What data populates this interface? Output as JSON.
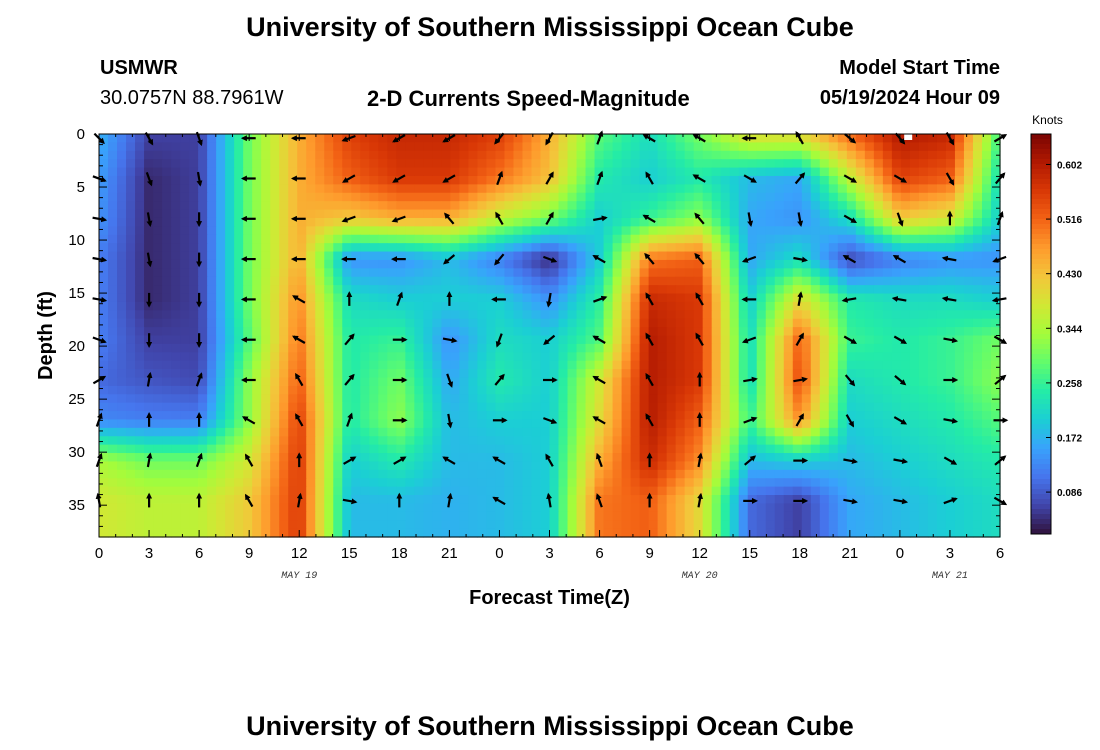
{
  "page": {
    "title": "University of Southern Mississippi Ocean Cube",
    "footer_title": "University of Southern Mississippi Ocean Cube"
  },
  "header": {
    "station_name": "USMWR",
    "station_coords": "30.0757N  88.7961W",
    "chart_subtitle": "2-D Currents Speed-Magnitude",
    "model_start_label": "Model Start Time",
    "model_start_value": "05/19/2024 Hour 09"
  },
  "colors": {
    "scale": [
      "#30123b",
      "#4145ab",
      "#4675ed",
      "#39a2fc",
      "#1bcfd4",
      "#24eca6",
      "#61fc6c",
      "#a4fc3b",
      "#d1e834",
      "#f3c63a",
      "#fe9b2d",
      "#f36315",
      "#d93806",
      "#b11901",
      "#7a0403"
    ],
    "arrow": "#000000",
    "marker": "#ffffff"
  },
  "chart_data": {
    "type": "heatmap",
    "title": "2-D Currents Speed-Magnitude",
    "xlabel": "Forecast Time(Z)",
    "ylabel": "Depth (ft)",
    "colorbar_label": "Knots",
    "colorbar_ticks": [
      "0.086",
      "0.172",
      "0.258",
      "0.344",
      "0.430",
      "0.516",
      "0.602"
    ],
    "colorbar_range": [
      0.02,
      0.65
    ],
    "x_hours_range": [
      0,
      54
    ],
    "x_tick_labels": [
      "0",
      "3",
      "6",
      "9",
      "12",
      "15",
      "18",
      "21",
      "0",
      "3",
      "6",
      "9",
      "12",
      "15",
      "18",
      "21",
      "0",
      "3",
      "6"
    ],
    "date_labels": [
      {
        "text": "MAY 19",
        "hour": 12
      },
      {
        "text": "MAY 20",
        "hour": 36
      },
      {
        "text": "MAY 21",
        "hour": 51
      }
    ],
    "y_range": [
      0,
      38
    ],
    "y_tick_labels": [
      "0",
      "5",
      "10",
      "15",
      "20",
      "25",
      "30",
      "35"
    ],
    "depths_ft": [
      0.4,
      4.2,
      8.0,
      11.8,
      15.6,
      19.4,
      23.2,
      27.0,
      30.8,
      34.6
    ],
    "hours": [
      0,
      3,
      6,
      9,
      12,
      15,
      18,
      21,
      24,
      27,
      30,
      33,
      36,
      39,
      42,
      45,
      48,
      51,
      54
    ],
    "speed_knots": [
      [
        0.17,
        0.06,
        0.06,
        0.3,
        0.45,
        0.55,
        0.58,
        0.58,
        0.55,
        0.45,
        0.28,
        0.22,
        0.3,
        0.38,
        0.38,
        0.5,
        0.6,
        0.58,
        0.26
      ],
      [
        0.15,
        0.04,
        0.06,
        0.3,
        0.45,
        0.52,
        0.56,
        0.56,
        0.5,
        0.43,
        0.24,
        0.2,
        0.24,
        0.18,
        0.16,
        0.36,
        0.55,
        0.52,
        0.22
      ],
      [
        0.14,
        0.04,
        0.06,
        0.3,
        0.45,
        0.42,
        0.45,
        0.45,
        0.36,
        0.3,
        0.2,
        0.26,
        0.32,
        0.16,
        0.14,
        0.22,
        0.42,
        0.38,
        0.2
      ],
      [
        0.12,
        0.04,
        0.06,
        0.3,
        0.45,
        0.14,
        0.14,
        0.18,
        0.12,
        0.04,
        0.2,
        0.5,
        0.52,
        0.16,
        0.22,
        0.07,
        0.12,
        0.14,
        0.14
      ],
      [
        0.12,
        0.04,
        0.06,
        0.3,
        0.48,
        0.22,
        0.2,
        0.2,
        0.2,
        0.14,
        0.25,
        0.58,
        0.56,
        0.2,
        0.4,
        0.24,
        0.22,
        0.22,
        0.2
      ],
      [
        0.12,
        0.06,
        0.06,
        0.28,
        0.5,
        0.24,
        0.26,
        0.14,
        0.22,
        0.2,
        0.28,
        0.6,
        0.56,
        0.22,
        0.52,
        0.26,
        0.24,
        0.26,
        0.3
      ],
      [
        0.1,
        0.08,
        0.07,
        0.32,
        0.52,
        0.24,
        0.3,
        0.16,
        0.24,
        0.2,
        0.38,
        0.6,
        0.56,
        0.22,
        0.54,
        0.22,
        0.24,
        0.26,
        0.32
      ],
      [
        0.13,
        0.12,
        0.12,
        0.32,
        0.55,
        0.24,
        0.32,
        0.18,
        0.2,
        0.2,
        0.4,
        0.6,
        0.52,
        0.26,
        0.48,
        0.2,
        0.22,
        0.24,
        0.28
      ],
      [
        0.34,
        0.3,
        0.3,
        0.38,
        0.56,
        0.2,
        0.24,
        0.18,
        0.18,
        0.2,
        0.45,
        0.58,
        0.48,
        0.18,
        0.2,
        0.18,
        0.2,
        0.22,
        0.24
      ],
      [
        0.38,
        0.36,
        0.36,
        0.42,
        0.56,
        0.18,
        0.18,
        0.17,
        0.18,
        0.2,
        0.5,
        0.52,
        0.4,
        0.1,
        0.06,
        0.16,
        0.18,
        0.2,
        0.22
      ]
    ],
    "direction_deg": [
      [
        135,
        150,
        160,
        270,
        270,
        250,
        240,
        240,
        220,
        210,
        20,
        300,
        300,
        270,
        330,
        130,
        140,
        150,
        60
      ],
      [
        110,
        160,
        170,
        270,
        270,
        240,
        240,
        240,
        20,
        30,
        20,
        330,
        300,
        120,
        40,
        120,
        120,
        150,
        40
      ],
      [
        100,
        170,
        180,
        270,
        270,
        250,
        250,
        320,
        330,
        30,
        80,
        300,
        320,
        170,
        170,
        120,
        160,
        0,
        20
      ],
      [
        100,
        170,
        180,
        270,
        270,
        270,
        270,
        230,
        220,
        110,
        300,
        320,
        320,
        250,
        100,
        300,
        300,
        280,
        250
      ],
      [
        100,
        180,
        180,
        270,
        300,
        0,
        20,
        0,
        270,
        190,
        70,
        330,
        330,
        270,
        10,
        260,
        280,
        280,
        260
      ],
      [
        110,
        180,
        180,
        270,
        300,
        40,
        90,
        100,
        200,
        230,
        300,
        330,
        330,
        250,
        30,
        120,
        120,
        100,
        120
      ],
      [
        60,
        10,
        20,
        270,
        330,
        40,
        90,
        160,
        40,
        90,
        300,
        330,
        0,
        80,
        80,
        140,
        130,
        90,
        50
      ],
      [
        20,
        0,
        0,
        300,
        330,
        20,
        90,
        170,
        90,
        110,
        300,
        330,
        0,
        70,
        30,
        150,
        120,
        100,
        90
      ],
      [
        20,
        10,
        20,
        330,
        0,
        60,
        60,
        300,
        300,
        330,
        340,
        0,
        10,
        50,
        90,
        100,
        100,
        120,
        50
      ],
      [
        350,
        0,
        0,
        330,
        10,
        100,
        0,
        10,
        300,
        350,
        340,
        0,
        10,
        90,
        90,
        100,
        100,
        70,
        120
      ]
    ],
    "marker": {
      "hour": 48.5,
      "depth_ft": 0
    }
  }
}
